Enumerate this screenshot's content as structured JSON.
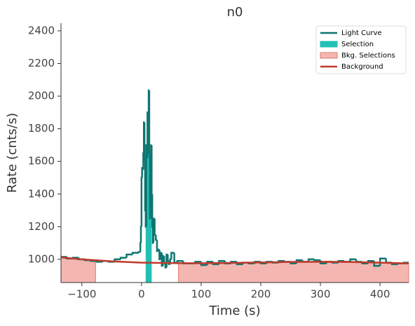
{
  "chart_data": {
    "type": "step",
    "title": "n0",
    "xlabel": "Time (s)",
    "ylabel": "Rate (cnts/s)",
    "xlim": [
      -135,
      448
    ],
    "ylim": [
      858,
      2447
    ],
    "xticks": [
      {
        "value": -100,
        "label": "−100"
      },
      0,
      100,
      200,
      300,
      400
    ],
    "yticks": [
      1000,
      1200,
      1400,
      1600,
      1800,
      2000,
      2200,
      2400
    ],
    "legend": "upper right",
    "light_curve": {
      "name": "Light Curve",
      "color": "#0f7570",
      "x": [
        -135,
        -125,
        -115,
        -105,
        -95,
        -85,
        -75,
        -65,
        -55,
        -45,
        -35,
        -25,
        -15,
        -5,
        -2,
        -1,
        0,
        1,
        2,
        3,
        4,
        5,
        6,
        7,
        8,
        9,
        10,
        11,
        12,
        13,
        14,
        15,
        16,
        17,
        18,
        19,
        20,
        22,
        24,
        26,
        28,
        30,
        32,
        34,
        36,
        38,
        40,
        42,
        44,
        46,
        48,
        50,
        55,
        60,
        70,
        80,
        90,
        100,
        110,
        120,
        130,
        140,
        150,
        160,
        170,
        180,
        190,
        200,
        210,
        220,
        230,
        240,
        250,
        260,
        270,
        280,
        290,
        300,
        310,
        320,
        330,
        340,
        350,
        360,
        370,
        380,
        390,
        400,
        410,
        420,
        430,
        440
      ],
      "values": [
        1015,
        1005,
        1010,
        1000,
        995,
        990,
        985,
        990,
        985,
        1000,
        1010,
        1030,
        1040,
        1045,
        1100,
        1200,
        1500,
        1560,
        1550,
        1650,
        1840,
        1600,
        1300,
        1200,
        1700,
        1620,
        1900,
        1780,
        2035,
        1650,
        1250,
        1350,
        1700,
        1400,
        1200,
        1100,
        1250,
        1150,
        1120,
        1050,
        1060,
        1000,
        1040,
        960,
        1020,
        980,
        950,
        1030,
        990,
        970,
        1000,
        1040,
        980,
        990,
        975,
        975,
        985,
        965,
        985,
        970,
        990,
        975,
        985,
        970,
        980,
        975,
        985,
        975,
        985,
        980,
        990,
        985,
        975,
        995,
        985,
        1000,
        995,
        975,
        985,
        980,
        990,
        985,
        1000,
        985,
        975,
        990,
        960,
        1005,
        980,
        970,
        975,
        980
      ]
    },
    "selection": {
      "name": "Selection",
      "color": "#20c0b4",
      "range": [
        7,
        17
      ]
    },
    "bkg_selections": {
      "name": "Bkg. Selections",
      "color": "#f4b6b0",
      "ranges": [
        [
          -135,
          -77
        ],
        [
          62,
          448
        ]
      ]
    },
    "background": {
      "name": "Background",
      "color": "#c0392b",
      "x": [
        -135,
        -100,
        -50,
        0,
        50,
        100,
        150,
        200,
        250,
        300,
        350,
        400,
        448
      ],
      "values": [
        1012,
        1000,
        988,
        980,
        977,
        976,
        978,
        981,
        984,
        985,
        984,
        980,
        975
      ]
    }
  }
}
